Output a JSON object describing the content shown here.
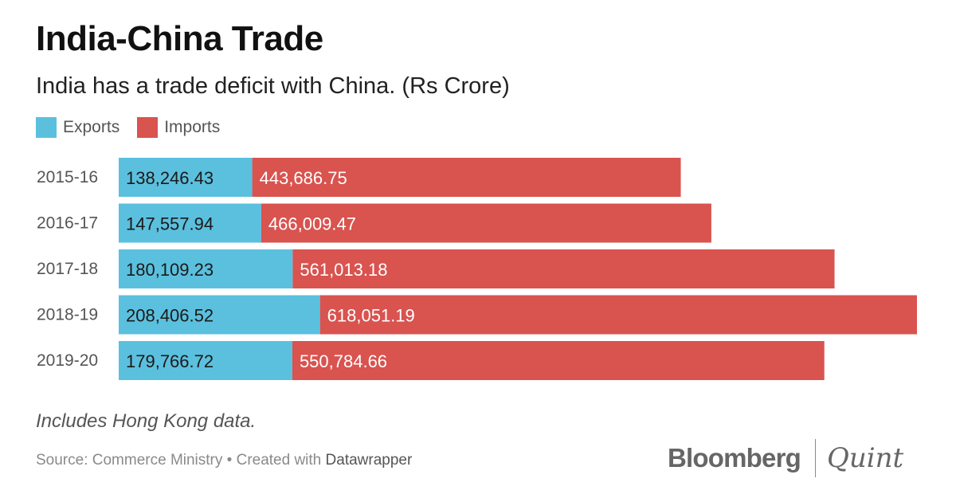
{
  "header": {
    "title": "India-China Trade",
    "subtitle": "India has a trade deficit with China. (Rs Crore)"
  },
  "legend": {
    "exports_label": "Exports",
    "imports_label": "Imports"
  },
  "colors": {
    "exports": "#5bc0de",
    "imports": "#d9534f",
    "label_text": "#ffffff",
    "category_text": "#555555"
  },
  "chart_data": {
    "type": "bar",
    "orientation": "horizontal",
    "stacked": true,
    "title": "India-China Trade",
    "subtitle": "India has a trade deficit with China. (Rs Crore)",
    "xlabel": "",
    "ylabel": "",
    "categories": [
      "2015-16",
      "2016-17",
      "2017-18",
      "2018-19",
      "2019-20"
    ],
    "series": [
      {
        "name": "Exports",
        "values": [
          138246.43,
          147557.94,
          180109.23,
          208406.52,
          179766.72
        ],
        "labels": [
          "138,246.43",
          "147,557.94",
          "180,109.23",
          "208,406.52",
          "179,766.72"
        ]
      },
      {
        "name": "Imports",
        "values": [
          443686.75,
          466009.47,
          561013.18,
          618051.19,
          550784.66
        ],
        "labels": [
          "443,686.75",
          "466,009.47",
          "561,013.18",
          "618,051.19",
          "550,784.66"
        ]
      }
    ],
    "xlim": [
      0,
      826457.71
    ],
    "grid": false,
    "legend_position": "top-left"
  },
  "footer": {
    "note": "Includes Hong Kong data.",
    "source_text": "Source: Commerce Ministry • Created with ",
    "source_tool": "Datawrapper",
    "logo_left": "Bloomberg",
    "logo_right": "Quint"
  }
}
